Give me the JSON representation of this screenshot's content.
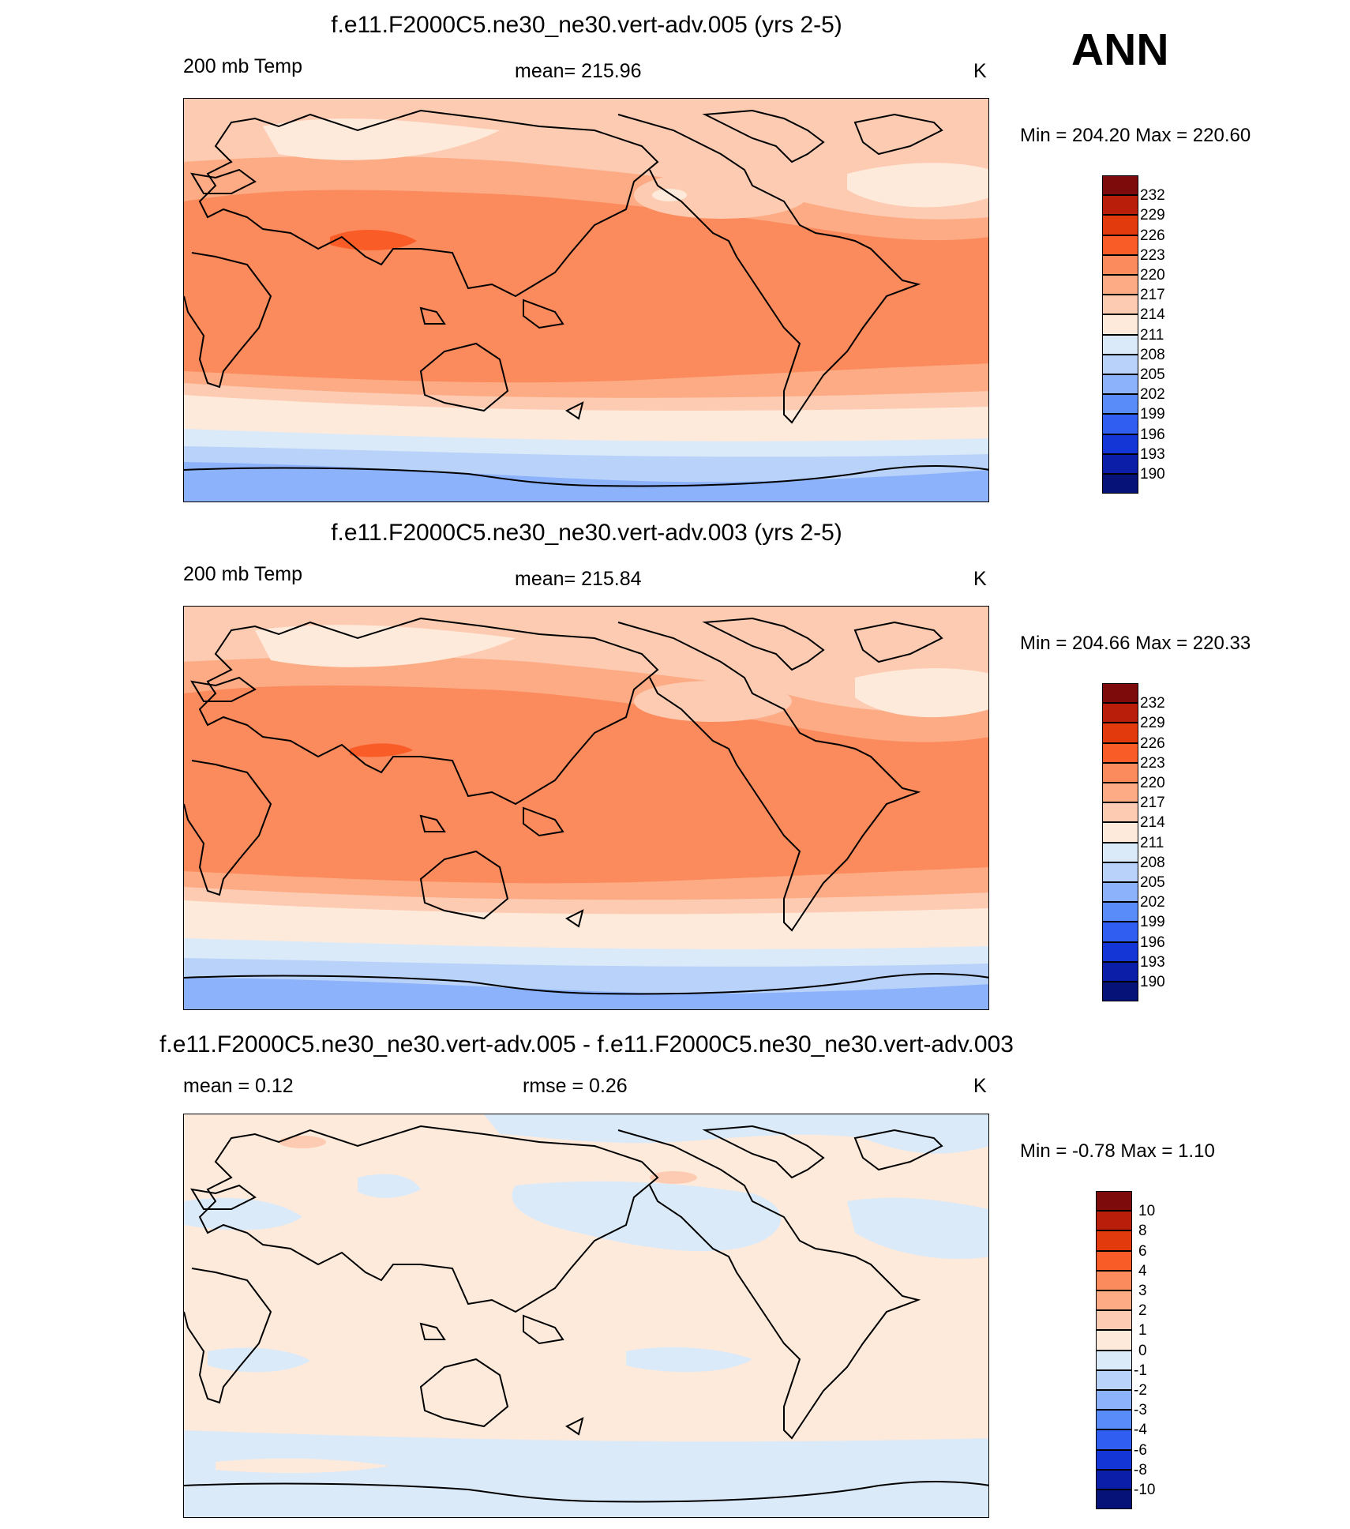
{
  "season": "ANN",
  "panels": [
    {
      "title": "f.e11.F2000C5.ne30_ne30.vert-adv.005 (yrs 2-5)",
      "left_label": "200 mb Temp",
      "center_label": "mean= 215.96",
      "right_label": "K",
      "minmax": "Min = 204.20 Max = 220.60",
      "colorbar": {
        "labels": [
          "232",
          "229",
          "226",
          "223",
          "220",
          "217",
          "214",
          "211",
          "208",
          "205",
          "202",
          "199",
          "196",
          "193",
          "190"
        ],
        "colors": [
          "#7d0b0b",
          "#b81e0a",
          "#e23a0c",
          "#fa5c28",
          "#fb8a5c",
          "#fcab84",
          "#fdcbb2",
          "#feeadb",
          "#dbeaf9",
          "#b8d2f9",
          "#8db2fc",
          "#5a8cf9",
          "#2f5ef0",
          "#1436d6",
          "#0b1ea8",
          "#071279"
        ]
      },
      "map_colors": {
        "polar": "#8db2fc",
        "band_s": "#b8d2f9",
        "cold": "#dbeaf9",
        "cool": "#feeadb",
        "mid": "#fdcbb2",
        "warm": "#fcab84",
        "hot": "#fb8a5c"
      }
    },
    {
      "title": "f.e11.F2000C5.ne30_ne30.vert-adv.003 (yrs 2-5)",
      "left_label": "200 mb Temp",
      "center_label": "mean= 215.84",
      "right_label": "K",
      "minmax": "Min = 204.66 Max = 220.33",
      "colorbar": {
        "labels": [
          "232",
          "229",
          "226",
          "223",
          "220",
          "217",
          "214",
          "211",
          "208",
          "205",
          "202",
          "199",
          "196",
          "193",
          "190"
        ],
        "colors": [
          "#7d0b0b",
          "#b81e0a",
          "#e23a0c",
          "#fa5c28",
          "#fb8a5c",
          "#fcab84",
          "#fdcbb2",
          "#feeadb",
          "#dbeaf9",
          "#b8d2f9",
          "#8db2fc",
          "#5a8cf9",
          "#2f5ef0",
          "#1436d6",
          "#0b1ea8",
          "#071279"
        ]
      },
      "map_colors": {
        "polar": "#8db2fc",
        "band_s": "#b8d2f9",
        "cold": "#dbeaf9",
        "cool": "#feeadb",
        "mid": "#fdcbb2",
        "warm": "#fcab84",
        "hot": "#fb8a5c"
      }
    },
    {
      "title": "f.e11.F2000C5.ne30_ne30.vert-adv.005 - f.e11.F2000C5.ne30_ne30.vert-adv.003",
      "left_label": "mean =   0.12",
      "center_label": "rmse =   0.26",
      "right_label": "K",
      "minmax": "Min =  -0.78 Max =   1.10",
      "colorbar": {
        "labels": [
          "10",
          "8",
          "6",
          "4",
          "3",
          "2",
          "1",
          "0",
          "-1",
          "-2",
          "-3",
          "-4",
          "-6",
          "-8",
          "-10"
        ],
        "colors": [
          "#7d0b0b",
          "#b81e0a",
          "#e23a0c",
          "#fa5c28",
          "#fb8a5c",
          "#fcab84",
          "#fdcbb2",
          "#feeadb",
          "#dbeaf9",
          "#b8d2f9",
          "#8db2fc",
          "#5a8cf9",
          "#2f5ef0",
          "#1436d6",
          "#0b1ea8",
          "#071279"
        ]
      },
      "map_colors": {
        "pos": "#feeadb",
        "neg": "#dbeaf9",
        "pos_strong": "#fdcbb2"
      }
    }
  ]
}
